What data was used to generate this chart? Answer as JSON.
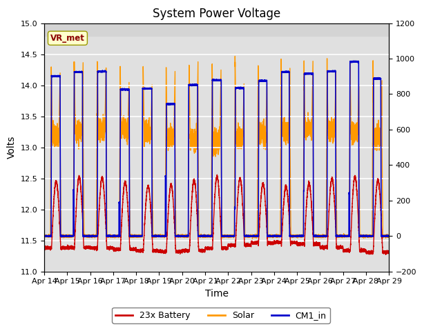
{
  "title": "System Power Voltage",
  "xlabel": "Time",
  "ylabel": "Volts",
  "ylim_left": [
    11.0,
    15.0
  ],
  "ylim_right": [
    -200,
    1200
  ],
  "yticks_left": [
    11.0,
    11.5,
    12.0,
    12.5,
    13.0,
    13.5,
    14.0,
    14.5,
    15.0
  ],
  "yticks_right": [
    -200,
    0,
    200,
    400,
    600,
    800,
    1000,
    1200
  ],
  "shade_above": 14.8,
  "shade_color": "#d4d4d4",
  "plot_bg": "#e0e0e0",
  "vr_met_label": "VR_met",
  "legend_labels": [
    "23x Battery",
    "Solar",
    "CM1_in"
  ],
  "line_colors": [
    "#cc0000",
    "#ff9900",
    "#0000cc"
  ],
  "title_fontsize": 12,
  "axis_label_fontsize": 10,
  "tick_fontsize": 8
}
